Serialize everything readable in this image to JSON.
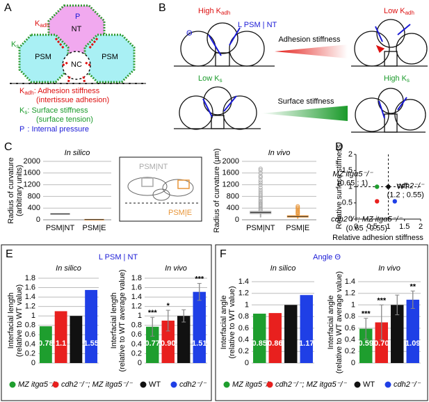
{
  "panels": {
    "a": {
      "letter": "A",
      "cells": [
        "NT",
        "PSM",
        "PSM",
        "NC"
      ],
      "p": "P",
      "kadh": {
        "main": "K",
        "sub": "adh"
      },
      "ks": {
        "main": "K",
        "sub": "s"
      },
      "legend": [
        {
          "main": "K",
          "sub": "adh",
          "text": ": Adhesion stiffness",
          "detail": "(intertissue adhesion)"
        },
        {
          "main": "K",
          "sub": "s",
          "text": ": Surface stiffness",
          "detail": "(surface tension)"
        },
        {
          "main": "P",
          "text": ": Internal pressure"
        }
      ]
    },
    "b": {
      "letter": "B",
      "high_kadh": {
        "main": "High K",
        "sub": "adh"
      },
      "low_kadh": {
        "main": "Low K",
        "sub": "adh"
      },
      "theta": "Θ",
      "length": "L PSM | NT",
      "adhesion": "Adhesion stiffness",
      "low_ks": {
        "main": "Low K",
        "sub": "s"
      },
      "high_ks": {
        "main": "High K",
        "sub": "s"
      },
      "surface": "Surface stiffness"
    },
    "c": {
      "letter": "C",
      "inset": [
        "PSM|NT",
        "PSM|E"
      ]
    },
    "d": {
      "letter": "D"
    },
    "e": {
      "letter": "E",
      "title": "L PSM | NT"
    },
    "f": {
      "letter": "F",
      "title": "Angle Θ"
    }
  },
  "chart_data": [
    {
      "type": "box",
      "subtitle": "In silico",
      "ylabel": [
        "Radius of curvature",
        "(arbitrary units)"
      ],
      "ylim": [
        0,
        2000
      ],
      "yticks": [
        0,
        400,
        800,
        1200,
        1600,
        2000
      ],
      "categories": [
        "PSM|NT",
        "PSM|E"
      ],
      "colors": [
        "#a9a9a9",
        "#e8963a"
      ],
      "median": [
        200,
        10
      ],
      "q1": [
        185,
        5
      ],
      "q3": [
        215,
        15
      ]
    },
    {
      "type": "box",
      "subtitle": "In vivo",
      "ylabel": [
        "Radius of curvature (µm)"
      ],
      "ylim": [
        0,
        2000
      ],
      "yticks": [
        0,
        400,
        800,
        1200,
        1600,
        2000
      ],
      "categories": [
        "PSM|NT",
        "PSM|E"
      ],
      "colors": [
        "#a9a9a9",
        "#e8963a"
      ],
      "median": [
        250,
        110
      ],
      "q1": [
        210,
        90
      ],
      "q3": [
        290,
        140
      ],
      "whisker_low": [
        80,
        40
      ],
      "whisker_high": [
        310,
        190
      ],
      "outliers": [
        [
          330,
          360,
          400,
          440,
          480,
          520,
          560,
          600,
          640,
          700,
          760,
          820,
          880,
          950,
          1020,
          1100,
          1200,
          1280,
          1350,
          1450,
          1500,
          1600,
          1700,
          1750
        ],
        [
          200,
          230,
          260,
          290,
          330,
          380,
          420,
          460
        ]
      ]
    },
    {
      "type": "scatter",
      "xlabel": "Relative adhesion stiffness",
      "ylabel": "Relative surface stiffness",
      "xlim": [
        0,
        2
      ],
      "ylim": [
        0,
        2
      ],
      "xticks": [
        0,
        0.5,
        1,
        1.5,
        2
      ],
      "yticks": [
        0,
        0.5,
        1,
        1.5,
        2
      ],
      "xref": 1,
      "yref": 1,
      "series": [
        {
          "name": "MZ itgα5⁻/⁻",
          "color": "#1e9e2e",
          "x": [
            0.65
          ],
          "values": [
            1
          ],
          "annotation": "(0.65 ; 1)"
        },
        {
          "name": "WT",
          "color": "#111111",
          "x": [
            1
          ],
          "values": [
            1
          ]
        },
        {
          "name": "cdh2⁻/⁻",
          "color": "#1f3fe6",
          "x": [
            1.2
          ],
          "values": [
            0.55
          ],
          "annotation": "(1.2 ; 0.55)"
        },
        {
          "name": "cdh2⁻/⁻; MZ itgα5⁻/⁻",
          "color": "#e8201e",
          "x": [
            0.65
          ],
          "values": [
            0.55
          ],
          "annotation": "(0.65 ; 0.55)"
        }
      ]
    },
    {
      "type": "bar",
      "subtitle": "In silico",
      "ylabel": [
        "Interfacial length",
        "(relative to WT value)"
      ],
      "ylim": [
        0,
        1.8
      ],
      "yticks": [
        0,
        0.2,
        0.4,
        0.6,
        0.8,
        1,
        1.2,
        1.4,
        1.6,
        1.8
      ],
      "categories": [
        "MZ itgα5⁻/⁻",
        "cdh2⁻/⁻; MZ itgα5⁻/⁻",
        "WT",
        "cdh2⁻/⁻"
      ],
      "colors": [
        "#1e9e2e",
        "#e8201e",
        "#111111",
        "#1f3fe6"
      ],
      "values": [
        0.78,
        1.1,
        1,
        1.55
      ],
      "value_labels": [
        "0.78",
        "1.1",
        null,
        "1.55"
      ]
    },
    {
      "type": "bar",
      "subtitle": "In vivo",
      "ylabel": [
        "Interfacial length",
        "(relative to WT average value)"
      ],
      "ylim": [
        0,
        1.8
      ],
      "yticks": [
        0,
        0.2,
        0.4,
        0.6,
        0.8,
        1,
        1.2,
        1.4,
        1.6,
        1.8
      ],
      "categories": [
        "MZ itgα5⁻/⁻",
        "cdh2⁻/⁻; MZ itgα5⁻/⁻",
        "WT",
        "cdh2⁻/⁻"
      ],
      "colors": [
        "#1e9e2e",
        "#e8201e",
        "#111111",
        "#1f3fe6"
      ],
      "values": [
        0.77,
        0.9,
        1,
        1.51
      ],
      "value_labels": [
        "0.77",
        "0.90",
        null,
        "1.51"
      ],
      "errors": [
        0.2,
        0.22,
        0.13,
        0.18
      ],
      "significance": [
        "***",
        "*",
        null,
        "***"
      ]
    },
    {
      "type": "bar",
      "subtitle": "In silico",
      "ylabel": [
        "Interfacial angle",
        "(relative to WT value)"
      ],
      "ylim": [
        0,
        1.4
      ],
      "yticks": [
        0,
        0.2,
        0.4,
        0.6,
        0.8,
        1,
        1.2,
        1.4
      ],
      "categories": [
        "MZ itgα5⁻/⁻",
        "cdh2⁻/⁻; MZ itgα5⁻/⁻",
        "WT",
        "cdh2⁻/⁻"
      ],
      "colors": [
        "#1e9e2e",
        "#e8201e",
        "#111111",
        "#1f3fe6"
      ],
      "values": [
        0.85,
        0.86,
        1,
        1.17
      ],
      "value_labels": [
        "0.85",
        "0.86",
        null,
        "1.17"
      ]
    },
    {
      "type": "bar",
      "subtitle": "In vivo",
      "ylabel": [
        "Interfacial angle",
        "(relative to WT average value)"
      ],
      "ylim": [
        0,
        1.4
      ],
      "yticks": [
        0,
        0.2,
        0.4,
        0.6,
        0.8,
        1,
        1.2,
        1.4
      ],
      "categories": [
        "MZ itgα5⁻/⁻",
        "cdh2⁻/⁻; MZ itgα5⁻/⁻",
        "WT",
        "cdh2⁻/⁻"
      ],
      "colors": [
        "#1e9e2e",
        "#e8201e",
        "#111111",
        "#1f3fe6"
      ],
      "values": [
        0.59,
        0.7,
        1,
        1.09
      ],
      "value_labels": [
        "0.59",
        "0.70",
        null,
        "1.09"
      ],
      "errors": [
        0.18,
        0.3,
        0.17,
        0.15
      ],
      "significance": [
        "***",
        "***",
        null,
        "**"
      ]
    }
  ]
}
